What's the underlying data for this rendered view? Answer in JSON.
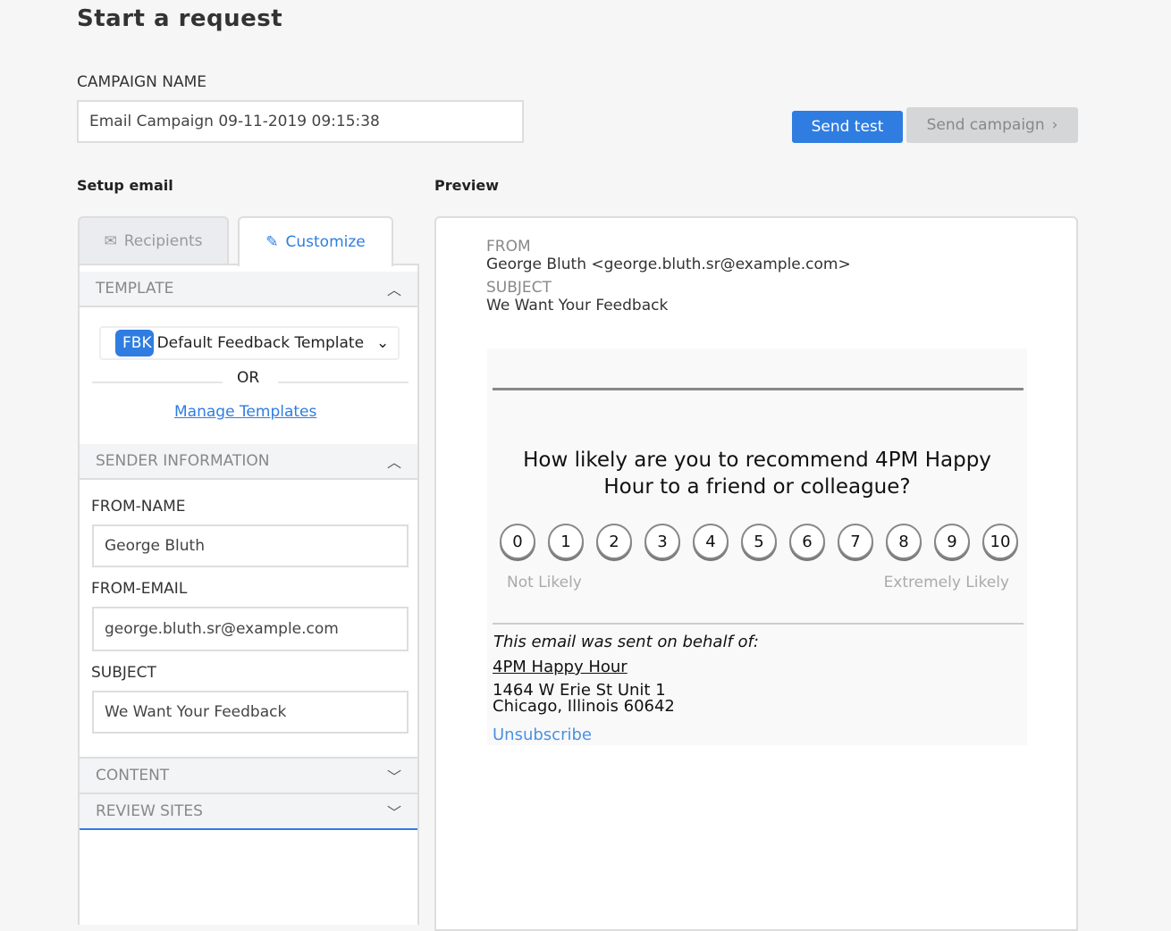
{
  "page_title": "Start a request",
  "campaign": {
    "label": "CAMPAIGN NAME",
    "value": "Email Campaign 09-11-2019 09:15:38"
  },
  "actions": {
    "send_test": "Send test",
    "send_campaign": "Send campaign",
    "accent": "#2f7de1"
  },
  "setup": {
    "title": "Setup email",
    "tabs": [
      {
        "label": "Recipients",
        "icon": "envelope-icon"
      },
      {
        "label": "Customize",
        "icon": "edit-icon",
        "active": true
      }
    ],
    "template": {
      "header": "TEMPLATE",
      "badge": "FBK",
      "selected": "Default Feedback Template",
      "or": "OR",
      "manage": "Manage Templates"
    },
    "sender": {
      "header": "SENDER INFORMATION",
      "from_name_label": "FROM-NAME",
      "from_name": "George Bluth",
      "from_email_label": "FROM-EMAIL",
      "from_email": "george.bluth.sr@example.com",
      "subject_label": "SUBJECT",
      "subject": "We Want Your Feedback"
    },
    "content": "CONTENT",
    "review_sites": "REVIEW SITES"
  },
  "preview": {
    "title": "Preview",
    "from_label": "FROM",
    "from": "George Bluth <george.bluth.sr@example.com>",
    "subject_label": "SUBJECT",
    "subject": "We Want Your Feedback",
    "question": "How likely are you to recommend 4PM Happy Hour to a friend or colleague?",
    "scale": [
      "0",
      "1",
      "2",
      "3",
      "4",
      "5",
      "6",
      "7",
      "8",
      "9",
      "10"
    ],
    "low": "Not Likely",
    "high": "Extremely Likely",
    "behalf": "This email was sent on behalf of:",
    "business": "4PM Happy Hour",
    "address1": "1464 W Erie St Unit 1",
    "address2": "Chicago, Illinois 60642",
    "unsubscribe": "Unsubscribe"
  }
}
